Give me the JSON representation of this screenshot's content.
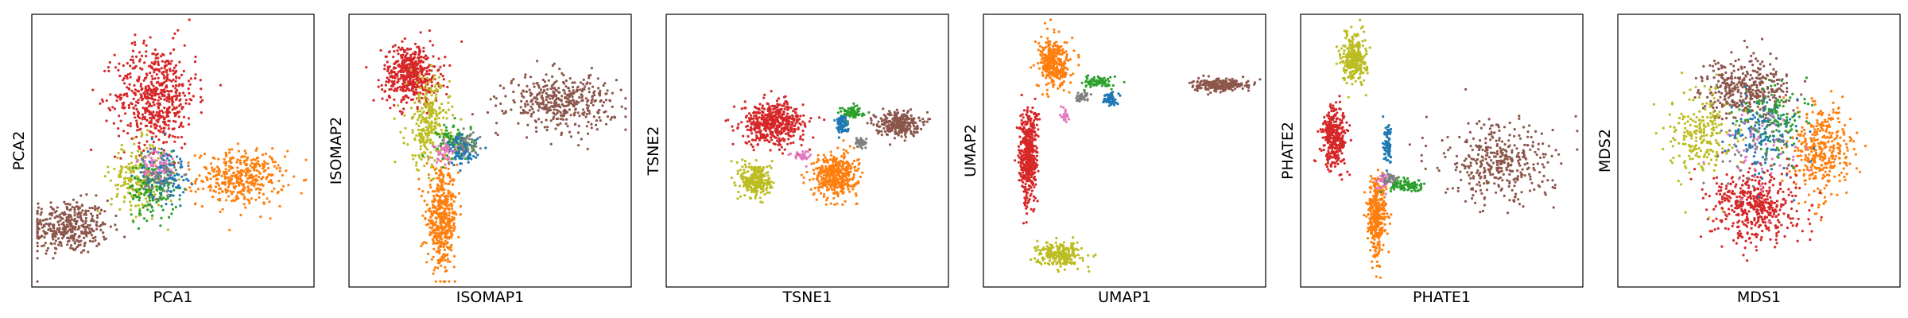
{
  "colors": {
    "red": "#d62728",
    "orange": "#ff7f0e",
    "brown": "#8c564b",
    "olive": "#bcbd22",
    "green": "#2ca02c",
    "blue": "#1f77b4",
    "pink": "#e377c2",
    "gray": "#7f7f7f"
  },
  "chart_data": [
    {
      "type": "scatter",
      "xlabel": "PCA1",
      "ylabel": "PCA2",
      "ticks": "none",
      "clusters": [
        {
          "color": "brown",
          "center": [
            0.13,
            0.22
          ],
          "spread": [
            0.13,
            0.09
          ],
          "weight": 1.0
        },
        {
          "color": "orange",
          "center": [
            0.74,
            0.4
          ],
          "spread": [
            0.14,
            0.09
          ],
          "weight": 1.0
        },
        {
          "color": "red",
          "center": [
            0.44,
            0.7
          ],
          "spread": [
            0.13,
            0.17
          ],
          "weight": 1.5
        },
        {
          "color": "olive",
          "center": [
            0.38,
            0.4
          ],
          "spread": [
            0.09,
            0.12
          ],
          "weight": 0.6
        },
        {
          "color": "green",
          "center": [
            0.43,
            0.36
          ],
          "spread": [
            0.08,
            0.1
          ],
          "weight": 0.4
        },
        {
          "color": "blue",
          "center": [
            0.47,
            0.42
          ],
          "spread": [
            0.07,
            0.09
          ],
          "weight": 0.3
        },
        {
          "color": "pink",
          "center": [
            0.44,
            0.44
          ],
          "spread": [
            0.06,
            0.07
          ],
          "weight": 0.15
        },
        {
          "color": "gray",
          "center": [
            0.46,
            0.4
          ],
          "spread": [
            0.06,
            0.07
          ],
          "weight": 0.15
        }
      ]
    },
    {
      "type": "scatter",
      "xlabel": "ISOMAP1",
      "ylabel": "ISOMAP2",
      "ticks": "none",
      "clusters": [
        {
          "color": "red",
          "center": [
            0.22,
            0.78
          ],
          "spread": [
            0.09,
            0.1
          ],
          "weight": 1.3
        },
        {
          "color": "olive",
          "center": [
            0.28,
            0.6
          ],
          "spread": [
            0.07,
            0.15
          ],
          "weight": 0.7
        },
        {
          "color": "orange",
          "center": [
            0.33,
            0.25
          ],
          "spread": [
            0.05,
            0.16
          ],
          "weight": 1.2
        },
        {
          "color": "brown",
          "center": [
            0.75,
            0.68
          ],
          "spread": [
            0.17,
            0.09
          ],
          "weight": 1.1
        },
        {
          "color": "green",
          "center": [
            0.38,
            0.53
          ],
          "spread": [
            0.06,
            0.06
          ],
          "weight": 0.3
        },
        {
          "color": "blue",
          "center": [
            0.4,
            0.5
          ],
          "spread": [
            0.05,
            0.05
          ],
          "weight": 0.25
        },
        {
          "color": "pink",
          "center": [
            0.34,
            0.5
          ],
          "spread": [
            0.04,
            0.04
          ],
          "weight": 0.1
        },
        {
          "color": "gray",
          "center": [
            0.42,
            0.52
          ],
          "spread": [
            0.04,
            0.04
          ],
          "weight": 0.1
        }
      ]
    },
    {
      "type": "scatter",
      "xlabel": "TSNE1",
      "ylabel": "TSNE2",
      "ticks": "none",
      "clusters": [
        {
          "color": "red",
          "center": [
            0.38,
            0.6
          ],
          "spread": [
            0.1,
            0.07
          ],
          "weight": 1.3
        },
        {
          "color": "orange",
          "center": [
            0.6,
            0.41
          ],
          "spread": [
            0.07,
            0.07
          ],
          "weight": 1.1
        },
        {
          "color": "olive",
          "center": [
            0.32,
            0.39
          ],
          "spread": [
            0.05,
            0.06
          ],
          "weight": 0.7
        },
        {
          "color": "brown",
          "center": [
            0.82,
            0.6
          ],
          "spread": [
            0.07,
            0.04
          ],
          "weight": 0.7
        },
        {
          "color": "green",
          "center": [
            0.66,
            0.64
          ],
          "spread": [
            0.04,
            0.02
          ],
          "weight": 0.2
        },
        {
          "color": "blue",
          "center": [
            0.62,
            0.6
          ],
          "spread": [
            0.02,
            0.03
          ],
          "weight": 0.2
        },
        {
          "color": "gray",
          "center": [
            0.69,
            0.53
          ],
          "spread": [
            0.02,
            0.02
          ],
          "weight": 0.12
        },
        {
          "color": "pink",
          "center": [
            0.48,
            0.48
          ],
          "spread": [
            0.03,
            0.02
          ],
          "weight": 0.08
        }
      ]
    },
    {
      "type": "scatter",
      "xlabel": "UMAP1",
      "ylabel": "UMAP2",
      "ticks": "none",
      "clusters": [
        {
          "color": "red",
          "center": [
            0.16,
            0.48
          ],
          "spread": [
            0.03,
            0.16
          ],
          "weight": 1.2
        },
        {
          "color": "orange",
          "center": [
            0.25,
            0.82
          ],
          "spread": [
            0.05,
            0.08
          ],
          "weight": 0.9
        },
        {
          "color": "olive",
          "center": [
            0.27,
            0.12
          ],
          "spread": [
            0.07,
            0.04
          ],
          "weight": 0.6
        },
        {
          "color": "brown",
          "center": [
            0.84,
            0.74
          ],
          "spread": [
            0.09,
            0.02
          ],
          "weight": 0.6
        },
        {
          "color": "green",
          "center": [
            0.41,
            0.75
          ],
          "spread": [
            0.05,
            0.02
          ],
          "weight": 0.2
        },
        {
          "color": "blue",
          "center": [
            0.45,
            0.69
          ],
          "spread": [
            0.02,
            0.02
          ],
          "weight": 0.15
        },
        {
          "color": "gray",
          "center": [
            0.35,
            0.7
          ],
          "spread": [
            0.02,
            0.02
          ],
          "weight": 0.1
        },
        {
          "color": "pink",
          "center": [
            0.29,
            0.63
          ],
          "spread": [
            0.01,
            0.03
          ],
          "weight": 0.06
        }
      ]
    },
    {
      "type": "scatter",
      "xlabel": "PHATE1",
      "ylabel": "PHATE2",
      "ticks": "none",
      "clusters": [
        {
          "color": "olive",
          "center": [
            0.19,
            0.84
          ],
          "spread": [
            0.04,
            0.08
          ],
          "weight": 0.8
        },
        {
          "color": "red",
          "center": [
            0.12,
            0.55
          ],
          "spread": [
            0.04,
            0.1
          ],
          "weight": 0.9
        },
        {
          "color": "orange",
          "center": [
            0.27,
            0.26
          ],
          "spread": [
            0.03,
            0.14
          ],
          "weight": 0.9
        },
        {
          "color": "brown",
          "center": [
            0.7,
            0.45
          ],
          "spread": [
            0.18,
            0.13
          ],
          "weight": 1.0
        },
        {
          "color": "blue",
          "center": [
            0.31,
            0.52
          ],
          "spread": [
            0.015,
            0.06
          ],
          "weight": 0.2
        },
        {
          "color": "green",
          "center": [
            0.38,
            0.37
          ],
          "spread": [
            0.06,
            0.02
          ],
          "weight": 0.25
        },
        {
          "color": "pink",
          "center": [
            0.29,
            0.38
          ],
          "spread": [
            0.02,
            0.03
          ],
          "weight": 0.08
        },
        {
          "color": "gray",
          "center": [
            0.32,
            0.4
          ],
          "spread": [
            0.02,
            0.02
          ],
          "weight": 0.08
        }
      ]
    },
    {
      "type": "scatter",
      "xlabel": "MDS1",
      "ylabel": "MDS2",
      "ticks": "none",
      "clusters": [
        {
          "color": "brown",
          "center": [
            0.45,
            0.73
          ],
          "spread": [
            0.14,
            0.1
          ],
          "weight": 1.0
        },
        {
          "color": "orange",
          "center": [
            0.72,
            0.5
          ],
          "spread": [
            0.1,
            0.15
          ],
          "weight": 1.0
        },
        {
          "color": "red",
          "center": [
            0.49,
            0.3
          ],
          "spread": [
            0.14,
            0.12
          ],
          "weight": 1.2
        },
        {
          "color": "olive",
          "center": [
            0.3,
            0.56
          ],
          "spread": [
            0.1,
            0.14
          ],
          "weight": 0.6
        },
        {
          "color": "green",
          "center": [
            0.55,
            0.62
          ],
          "spread": [
            0.1,
            0.12
          ],
          "weight": 0.35
        },
        {
          "color": "blue",
          "center": [
            0.52,
            0.55
          ],
          "spread": [
            0.12,
            0.14
          ],
          "weight": 0.35
        },
        {
          "color": "pink",
          "center": [
            0.5,
            0.5
          ],
          "spread": [
            0.14,
            0.14
          ],
          "weight": 0.12
        },
        {
          "color": "gray",
          "center": [
            0.5,
            0.52
          ],
          "spread": [
            0.14,
            0.14
          ],
          "weight": 0.12
        }
      ]
    }
  ]
}
